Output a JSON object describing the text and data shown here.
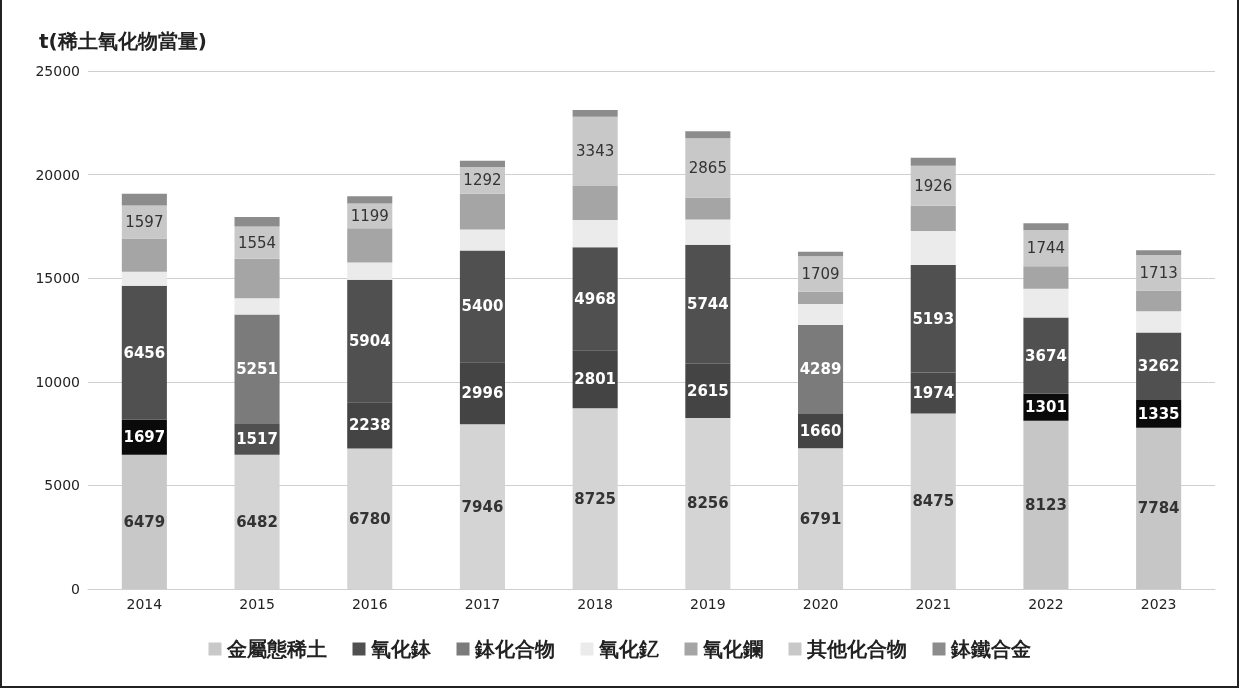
{
  "chart_data": {
    "type": "bar",
    "stacked": true,
    "ylabel": "t(稀土氧化物當量)",
    "categories": [
      "2014",
      "2015",
      "2016",
      "2017",
      "2018",
      "2019",
      "2020",
      "2021",
      "2022",
      "2023"
    ],
    "ylim": [
      0,
      25000
    ],
    "yticks": [
      0,
      5000,
      10000,
      15000,
      20000,
      25000
    ],
    "grid": "y",
    "legend": "bottom",
    "series": [
      {
        "name": "金屬態稀土",
        "color": "#c8c8c8",
        "colors": [
          "#c8c8c8",
          "#d4d4d4",
          "#d4d4d4",
          "#d4d4d4",
          "#d4d4d4",
          "#d4d4d4",
          "#d4d4d4",
          "#d4d4d4",
          "#c6c6c6",
          "#c6c6c6"
        ],
        "values": [
          6479,
          6482,
          6780,
          7946,
          8725,
          8256,
          6791,
          8475,
          8123,
          7784
        ],
        "value_labels": [
          "6479",
          "6482",
          "6780",
          "7946",
          "8725",
          "8256",
          "6791",
          "8475",
          "8123",
          "7784"
        ]
      },
      {
        "name": "氧化鉢",
        "color": "#505050",
        "colors": [
          "#0a0a0a",
          "#505050",
          "#444444",
          "#444444",
          "#444444",
          "#444444",
          "#444444",
          "#484848",
          "#0a0a0a",
          "#0a0a0a"
        ],
        "values": [
          1697,
          1517,
          2238,
          2996,
          2801,
          2615,
          1660,
          1974,
          1301,
          1335
        ],
        "value_labels": [
          "1697",
          "1517",
          "2238",
          "2996",
          "2801",
          "2615",
          "1660",
          "1974",
          "1301",
          "1335"
        ]
      },
      {
        "name": "鉢化合物",
        "color": "#7b7b7b",
        "colors": [
          "#505050",
          "#7b7b7b",
          "#505050",
          "#505050",
          "#505050",
          "#505050",
          "#7b7b7b",
          "#505050",
          "#505050",
          "#505050"
        ],
        "values": [
          6456,
          5251,
          5904,
          5400,
          4968,
          5744,
          4289,
          5193,
          3674,
          3262
        ],
        "value_labels": [
          "6456",
          "5251",
          "5904",
          "5400",
          "4968",
          "5744",
          "4289",
          "5193",
          "3674",
          "3262"
        ]
      },
      {
        "name": "氧化釔",
        "color": "#ebebeb",
        "values": [
          680,
          780,
          830,
          1010,
          1320,
          1220,
          1010,
          1630,
          1390,
          1020
        ]
      },
      {
        "name": "氧化鑭",
        "color": "#a5a5a5",
        "values": [
          1600,
          1910,
          1660,
          1720,
          1640,
          1060,
          600,
          1230,
          1090,
          1000
        ]
      },
      {
        "name": "其他化合物",
        "color": "#c8c8c8",
        "values": [
          1597,
          1554,
          1199,
          1292,
          3343,
          2865,
          1709,
          1926,
          1744,
          1713
        ],
        "value_labels": [
          "1597",
          "1554",
          "1199",
          "1292",
          "3343",
          "2865",
          "1709",
          "1926",
          "1744",
          "1713"
        ]
      },
      {
        "name": "鉢鐵合金",
        "color": "#8c8c8c",
        "values": [
          570,
          460,
          340,
          310,
          320,
          330,
          220,
          390,
          330,
          240
        ]
      }
    ]
  }
}
